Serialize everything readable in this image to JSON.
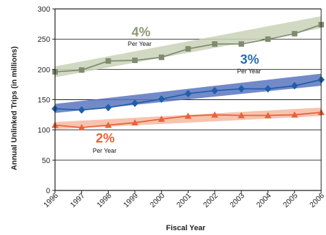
{
  "chart_data": {
    "type": "line",
    "xlabel": "Fiscal Year",
    "ylabel": "Annual Unlinked Trips (in millions)",
    "ylim": [
      0,
      300
    ],
    "yticks": [
      "0",
      "50",
      "100",
      "150",
      "200",
      "250",
      "300"
    ],
    "categories": [
      "1996",
      "1997",
      "1998",
      "1999",
      "2000",
      "2001",
      "2002",
      "2003",
      "2004",
      "2005",
      "2006"
    ],
    "grid": "horizontal",
    "series": [
      {
        "marker": "square",
        "color": "#7f8b6e",
        "band_color": "#c9d2b8",
        "values": [
          196,
          199,
          214,
          215,
          220,
          234,
          242,
          242,
          250,
          259,
          274
        ],
        "trend_band": {
          "lower_start": 187,
          "upper_start": 205,
          "lower_end": 268,
          "upper_end": 288
        },
        "annotation": {
          "rate": "4%",
          "unit": "Per Year",
          "color": "#8a9a74"
        }
      },
      {
        "marker": "diamond",
        "color": "#1f5fa8",
        "band_color": "#5b75c0",
        "values": [
          135,
          133,
          137,
          144,
          151,
          160,
          165,
          168,
          168,
          173,
          183
        ],
        "trend_band": {
          "lower_start": 128,
          "upper_start": 143,
          "lower_end": 173,
          "upper_end": 193
        },
        "annotation": {
          "rate": "3%",
          "unit": "Per Year",
          "color": "#2a6db5"
        }
      },
      {
        "marker": "triangle",
        "color": "#e8623a",
        "band_color": "#f6b8a0",
        "values": [
          108,
          104,
          108,
          112,
          118,
          123,
          125,
          124,
          124,
          125,
          129
        ],
        "trend_band": {
          "lower_start": 101,
          "upper_start": 113,
          "lower_end": 123,
          "upper_end": 137
        },
        "annotation": {
          "rate": "2%",
          "unit": "Per Year",
          "color": "#e8623a"
        }
      }
    ]
  }
}
